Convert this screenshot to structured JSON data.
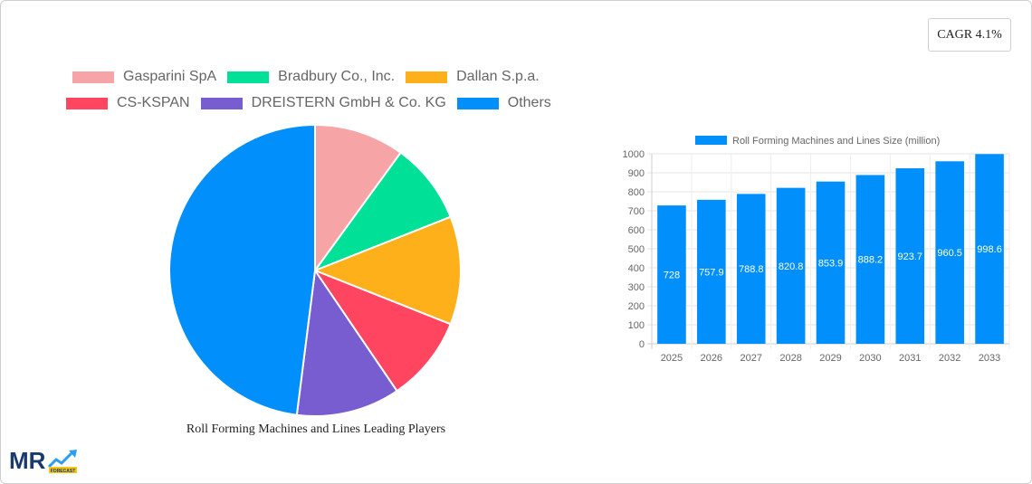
{
  "cagr": {
    "label": "CAGR 4.1%"
  },
  "pie": {
    "title": "Roll Forming Machines and Lines Leading Players",
    "legend_row1": [
      {
        "label": "Gasparini SpA",
        "color": "#F7A4A6"
      },
      {
        "label": "Bradbury Co., Inc.",
        "color": "#00E096"
      },
      {
        "label": "Dallan S.p.a.",
        "color": "#FDB01A"
      }
    ],
    "legend_row2": [
      {
        "label": "CS-KSPAN",
        "color": "#FF4560"
      },
      {
        "label": "DREISTERN GmbH & Co. KG",
        "color": "#775DD0"
      },
      {
        "label": "Others",
        "color": "#008FFB"
      }
    ]
  },
  "bar": {
    "legend": "Roll Forming Machines and Lines Size (million)",
    "color": "#008FFB"
  },
  "logo": {
    "text": "MR",
    "sub": "FORECAST"
  },
  "chart_data": [
    {
      "type": "pie",
      "title": "Roll Forming Machines and Lines Leading Players",
      "categories": [
        "Gasparini SpA",
        "Bradbury Co., Inc.",
        "Dallan S.p.a.",
        "CS-KSPAN",
        "DREISTERN GmbH & Co. KG",
        "Others"
      ],
      "values": [
        10,
        9,
        12,
        9.5,
        11.5,
        48
      ],
      "colors": [
        "#F7A4A6",
        "#00E096",
        "#FDB01A",
        "#FF4560",
        "#775DD0",
        "#008FFB"
      ],
      "legend_position": "top"
    },
    {
      "type": "bar",
      "title": "",
      "legend": [
        "Roll Forming Machines and Lines Size (million)"
      ],
      "categories": [
        "2025",
        "2026",
        "2027",
        "2028",
        "2029",
        "2030",
        "2031",
        "2032",
        "2033"
      ],
      "values": [
        728,
        757.9,
        788.8,
        820.8,
        853.9,
        888.2,
        923.7,
        960.5,
        998.6
      ],
      "xlabel": "",
      "ylabel": "",
      "ylim": [
        0,
        1000
      ],
      "yticks": [
        0,
        100,
        200,
        300,
        400,
        500,
        600,
        700,
        800,
        900,
        1000
      ],
      "grid": true,
      "legend_position": "top"
    }
  ]
}
